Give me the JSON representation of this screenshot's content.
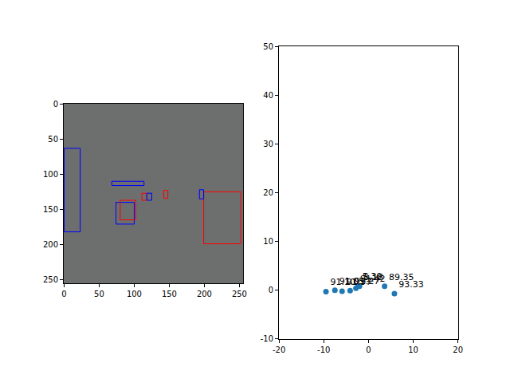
{
  "chart_data": [
    {
      "type": "image",
      "xlim": [
        -0.5,
        255.5
      ],
      "ylim": [
        255.5,
        -0.5
      ],
      "xticks": [
        0,
        50,
        100,
        150,
        200,
        250
      ],
      "yticks": [
        0,
        50,
        100,
        150,
        200,
        250
      ],
      "boxes": [
        {
          "x0": 199,
          "y0": 125,
          "x1": 252,
          "y1": 199,
          "color": "red"
        },
        {
          "x0": 0,
          "y0": 63,
          "x1": 23,
          "y1": 182,
          "color": "blue"
        },
        {
          "x0": 74,
          "y0": 140,
          "x1": 100,
          "y1": 171,
          "color": "blue"
        },
        {
          "x0": 80,
          "y0": 137,
          "x1": 102,
          "y1": 165,
          "color": "red"
        },
        {
          "x0": 68,
          "y0": 110,
          "x1": 114,
          "y1": 116,
          "color": "blue"
        },
        {
          "x0": 111,
          "y0": 127,
          "x1": 118,
          "y1": 137,
          "color": "red"
        },
        {
          "x0": 118,
          "y0": 127,
          "x1": 125,
          "y1": 137,
          "color": "blue"
        },
        {
          "x0": 142,
          "y0": 123,
          "x1": 148,
          "y1": 134,
          "color": "red"
        },
        {
          "x0": 193,
          "y0": 122,
          "x1": 199,
          "y1": 135,
          "color": "blue"
        }
      ]
    },
    {
      "type": "scatter",
      "xlim": [
        -20,
        20
      ],
      "ylim": [
        -10,
        50
      ],
      "xticks": [
        -20,
        -10,
        0,
        10,
        20
      ],
      "yticks": [
        -10,
        0,
        10,
        20,
        30,
        40,
        50
      ],
      "color": "#1f77b4",
      "marker": "circle",
      "data_labels": true,
      "x": [
        -9.5,
        -7.5,
        -5.9,
        -4.1,
        -2.8,
        -2.3,
        -2.0,
        3.6,
        5.8
      ],
      "y": [
        -0.3,
        0.0,
        -0.2,
        -0.1,
        0.4,
        0.9,
        0.8,
        0.8,
        -0.7
      ],
      "labels": [
        "91.10",
        "91.05",
        "91.97",
        "91.27",
        "91.42",
        "5.30",
        "5.18",
        "89.35",
        "93.33"
      ]
    }
  ]
}
